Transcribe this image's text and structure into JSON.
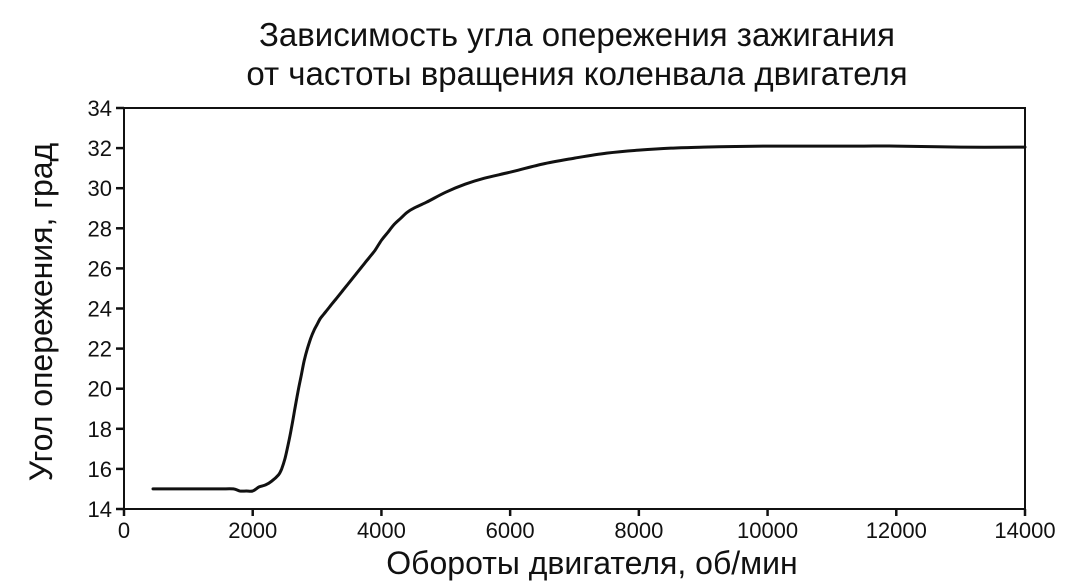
{
  "chart_data": {
    "type": "line",
    "title_lines": [
      "Зависимость угла опережения зажигания",
      "от частоты вращения коленвала двигателя"
    ],
    "xlabel": "Обороты двигателя, об/мин",
    "ylabel": "Угол опережения, град",
    "xlim": [
      0,
      14000
    ],
    "ylim": [
      14,
      34
    ],
    "x_ticks": [
      0,
      2000,
      4000,
      6000,
      8000,
      10000,
      12000,
      14000
    ],
    "y_ticks": [
      14,
      16,
      18,
      20,
      22,
      24,
      26,
      28,
      30,
      32,
      34
    ],
    "grid": false,
    "legend": "none",
    "line_color": "#111111",
    "series": [
      {
        "x": [
          450,
          800,
          1200,
          1500,
          1700,
          1800,
          1900,
          2000,
          2100,
          2200,
          2300,
          2400,
          2450,
          2500,
          2550,
          2600,
          2650,
          2700,
          2750,
          2800,
          2850,
          2900,
          2950,
          3000,
          3050,
          3100,
          3200,
          3300,
          3400,
          3500,
          3600,
          3700,
          3800,
          3900,
          4000,
          4100,
          4200,
          4300,
          4400,
          4500,
          4700,
          5000,
          5300,
          5600,
          6000,
          6500,
          7000,
          7500,
          8000,
          8500,
          9000,
          9500,
          10000,
          10500,
          11000,
          11500,
          12000,
          13000,
          14000
        ],
        "y": [
          15.0,
          15.0,
          15.0,
          15.0,
          15.0,
          14.9,
          14.9,
          14.9,
          15.1,
          15.2,
          15.4,
          15.7,
          16.0,
          16.5,
          17.2,
          18.0,
          18.9,
          19.8,
          20.6,
          21.4,
          22.0,
          22.5,
          22.9,
          23.2,
          23.5,
          23.7,
          24.1,
          24.5,
          24.9,
          25.3,
          25.7,
          26.1,
          26.5,
          26.9,
          27.4,
          27.8,
          28.2,
          28.5,
          28.8,
          29.0,
          29.3,
          29.8,
          30.2,
          30.5,
          30.8,
          31.2,
          31.5,
          31.75,
          31.9,
          32.0,
          32.05,
          32.08,
          32.1,
          32.1,
          32.1,
          32.1,
          32.1,
          32.05,
          32.05
        ]
      }
    ]
  }
}
